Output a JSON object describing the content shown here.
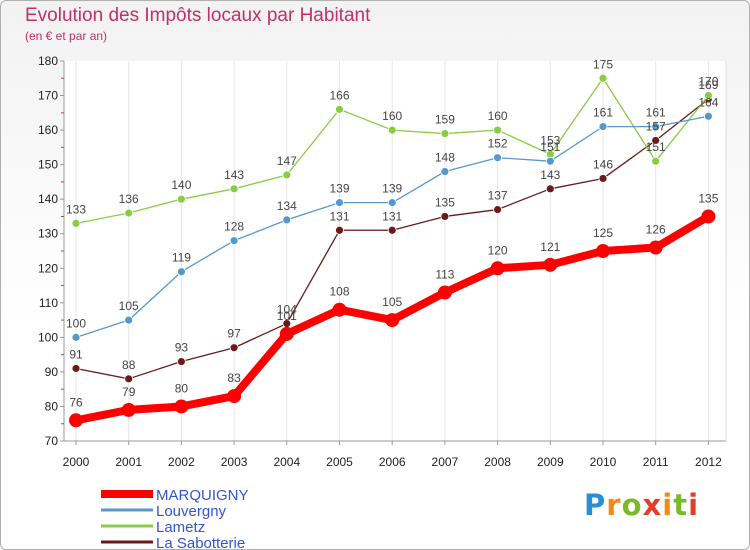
{
  "title": "Evolution des Impôts locaux par Habitant",
  "subtitle": "(en € et par an)",
  "logo": {
    "p": "P",
    "r": "r",
    "o": "o",
    "x": "x",
    "i1": "i",
    "t": "t",
    "i2": "i"
  },
  "chart_data": {
    "type": "line",
    "title": "Evolution des Impôts locaux par Habitant",
    "subtitle": "(en € et par an)",
    "xlabel": "",
    "ylabel": "",
    "ylim": [
      70,
      180
    ],
    "yticks": [
      "70",
      "80",
      "90",
      "100",
      "110",
      "120",
      "130",
      "140",
      "150",
      "160",
      "170",
      "180"
    ],
    "categories": [
      "2000",
      "2001",
      "2002",
      "2003",
      "2004",
      "2005",
      "2006",
      "2007",
      "2008",
      "2009",
      "2010",
      "2011",
      "2012"
    ],
    "legend_position": "bottom-left",
    "series": [
      {
        "name": "La Sabotterie",
        "color": "#6b1a1a",
        "width": 1.3,
        "dot": 4,
        "values": [
          91,
          88,
          93,
          97,
          104,
          131,
          131,
          135,
          137,
          143,
          146,
          157,
          169
        ],
        "labels": [
          "91",
          "88",
          "93",
          "97",
          "104",
          "131",
          "131",
          "135",
          "137",
          "143",
          "146",
          "157",
          "169"
        ]
      },
      {
        "name": "Lametz",
        "color": "#88cc44",
        "width": 1.3,
        "dot": 4,
        "values": [
          133,
          136,
          140,
          143,
          147,
          166,
          160,
          159,
          160,
          153,
          175,
          151,
          170
        ],
        "labels": [
          "133",
          "136",
          "140",
          "143",
          "147",
          "166",
          "160",
          "159",
          "160",
          "153",
          "175",
          "151",
          "170"
        ]
      },
      {
        "name": "Louvergny",
        "color": "#5599cc",
        "width": 1.3,
        "dot": 4,
        "values": [
          100,
          105,
          119,
          128,
          134,
          139,
          139,
          148,
          152,
          151,
          161,
          161,
          164
        ],
        "labels": [
          "100",
          "105",
          "119",
          "128",
          "134",
          "139",
          "139",
          "148",
          "152",
          "151",
          "161",
          "161",
          "164"
        ]
      },
      {
        "name": "MARQUIGNY",
        "color": "#ff0000",
        "width": 8,
        "dot": 7,
        "values": [
          76,
          79,
          80,
          83,
          101,
          108,
          105,
          113,
          120,
          121,
          125,
          126,
          135
        ],
        "labels": [
          "76",
          "79",
          "80",
          "83",
          "101",
          "108",
          "105",
          "113",
          "120",
          "121",
          "125",
          "126",
          "135"
        ]
      }
    ],
    "legend": [
      {
        "name": "MARQUIGNY",
        "color": "#ff0000",
        "width": 8
      },
      {
        "name": "Louvergny",
        "color": "#5599cc",
        "width": 3
      },
      {
        "name": "Lametz",
        "color": "#88cc44",
        "width": 3
      },
      {
        "name": "La Sabotterie",
        "color": "#6b1a1a",
        "width": 3
      }
    ]
  }
}
